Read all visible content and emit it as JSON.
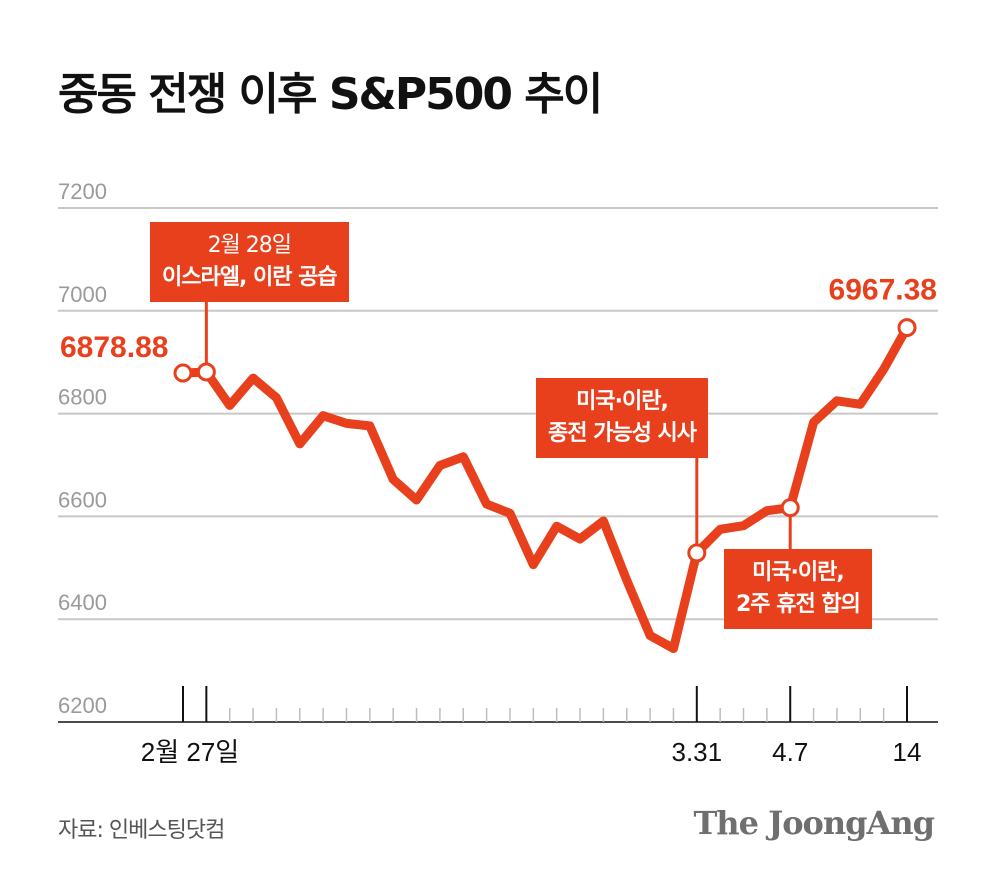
{
  "title": "중동 전쟁 이후 S&P500 추이",
  "source": "자료: 인베스팅닷컴",
  "logo_text": "The JoongAng",
  "colors": {
    "line": "#e8401c",
    "grid": "#c8c8c8",
    "axis": "#111111"
  },
  "chart_data": {
    "type": "line",
    "title": "중동 전쟁 이후 S&P500 추이",
    "ylim": [
      6200,
      7200
    ],
    "yticks": [
      7200,
      7000,
      6800,
      6600,
      6400,
      6200
    ],
    "grid": true,
    "x_tick_labels": [
      "2월 27일",
      "3.31",
      "4.7",
      "14"
    ],
    "series": [
      {
        "values": [
          6878.88,
          6881,
          6816,
          6869,
          6831,
          6741,
          6796,
          6781,
          6776,
          6672,
          6632,
          6699,
          6716,
          6624,
          6606,
          6506,
          6581,
          6556,
          6591,
          6476,
          6368,
          6343,
          6529,
          6575,
          6582,
          6611,
          6617,
          6783,
          6825,
          6818,
          6886,
          6967.38
        ]
      }
    ],
    "value_labels": [
      {
        "index": 0,
        "text": "6878.88"
      },
      {
        "index": 31,
        "text": "6967.38"
      }
    ],
    "annotations": [
      {
        "index": 1,
        "line1": "2월 28일",
        "line2": "이스라엘, 이란 공습"
      },
      {
        "index": 22,
        "line1": "미국·이란,",
        "line2": "종전 가능성 시사"
      },
      {
        "index": 26,
        "line1": "미국·이란,",
        "line2": "2주 휴전 합의"
      }
    ]
  }
}
